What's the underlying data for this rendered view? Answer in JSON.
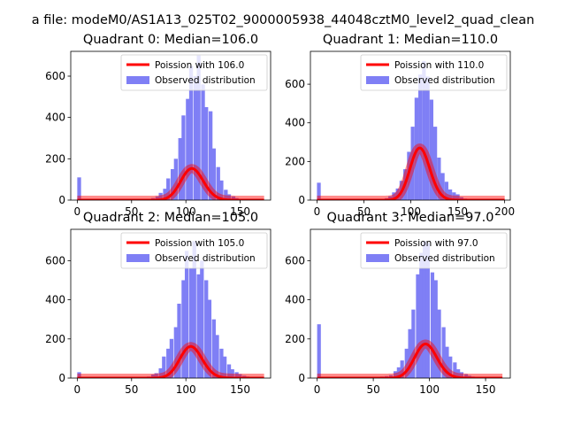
{
  "figure": {
    "suptitle": "a file: modeM0/AS1A13_025T02_9000005938_44048cztM0_level2_quad_clean"
  },
  "colors": {
    "hist": "#7f7ff5",
    "poisson": "#ff0000"
  },
  "chart_data": [
    {
      "type": "bar",
      "title": "Quadrant 0: Median=106.0",
      "median": 106,
      "xlim": [
        -6,
        178
      ],
      "ylim": [
        0,
        720
      ],
      "xticks": [
        0,
        50,
        100,
        150
      ],
      "yticks": [
        0,
        200,
        400,
        600
      ],
      "legend": {
        "placement": "top-right",
        "entries": [
          "Poission with 106.0",
          "Observed distribution"
        ]
      },
      "series": [
        {
          "name": "Poission with 106.0",
          "type": "line",
          "lambda": 106,
          "scale": 3950,
          "x_range": [
            0,
            172
          ]
        },
        {
          "name": "Observed distribution",
          "type": "bar",
          "bin_width": 3.5,
          "bins": [
            [
              0,
              110
            ],
            [
              60,
              3
            ],
            [
              65,
              6
            ],
            [
              68,
              10
            ],
            [
              72,
              18
            ],
            [
              75,
              35
            ],
            [
              79,
              55
            ],
            [
              82,
              105
            ],
            [
              86,
              150
            ],
            [
              89,
              200
            ],
            [
              93,
              300
            ],
            [
              96,
              410
            ],
            [
              100,
              490
            ],
            [
              103,
              650
            ],
            [
              107,
              600
            ],
            [
              110,
              700
            ],
            [
              114,
              560
            ],
            [
              117,
              450
            ],
            [
              121,
              430
            ],
            [
              124,
              250
            ],
            [
              128,
              160
            ],
            [
              131,
              95
            ],
            [
              135,
              50
            ],
            [
              138,
              28
            ],
            [
              142,
              18
            ],
            [
              145,
              10
            ],
            [
              149,
              6
            ],
            [
              152,
              4
            ]
          ]
        }
      ]
    },
    {
      "type": "bar",
      "title": "Quadrant 1: Median=110.0",
      "median": 110,
      "xlim": [
        -7,
        206
      ],
      "ylim": [
        0,
        770
      ],
      "xticks": [
        0,
        50,
        100,
        150,
        200
      ],
      "yticks": [
        0,
        200,
        400,
        600
      ],
      "legend": {
        "placement": "top-right",
        "entries": [
          "Poission with 110.0",
          "Observed distribution"
        ]
      },
      "series": [
        {
          "name": "Poission with 110.0",
          "type": "line",
          "lambda": 110,
          "scale": 7100,
          "x_range": [
            0,
            200
          ]
        },
        {
          "name": "Observed distribution",
          "type": "bar",
          "bin_width": 4,
          "bins": [
            [
              0,
              90
            ],
            [
              60,
              3
            ],
            [
              68,
              6
            ],
            [
              72,
              10
            ],
            [
              76,
              20
            ],
            [
              80,
              40
            ],
            [
              84,
              60
            ],
            [
              88,
              100
            ],
            [
              92,
              160
            ],
            [
              96,
              250
            ],
            [
              100,
              380
            ],
            [
              104,
              530
            ],
            [
              108,
              650
            ],
            [
              112,
              720
            ],
            [
              116,
              640
            ],
            [
              120,
              520
            ],
            [
              124,
              380
            ],
            [
              128,
              220
            ],
            [
              132,
              140
            ],
            [
              136,
              95
            ],
            [
              140,
              55
            ],
            [
              144,
              40
            ],
            [
              148,
              30
            ],
            [
              152,
              15
            ],
            [
              156,
              8
            ],
            [
              160,
              4
            ]
          ]
        }
      ]
    },
    {
      "type": "bar",
      "title": "Quadrant 2: Median=105.0",
      "median": 105,
      "xlim": [
        -6,
        178
      ],
      "ylim": [
        0,
        760
      ],
      "xticks": [
        0,
        50,
        100,
        150
      ],
      "yticks": [
        0,
        200,
        400,
        600
      ],
      "legend": {
        "placement": "top-right",
        "entries": [
          "Poission with 105.0",
          "Observed distribution"
        ]
      },
      "series": [
        {
          "name": "Poission with 105.0",
          "type": "line",
          "lambda": 105,
          "scale": 4150,
          "x_range": [
            0,
            172
          ]
        },
        {
          "name": "Observed distribution",
          "type": "bar",
          "bin_width": 3.5,
          "bins": [
            [
              0,
              30
            ],
            [
              57,
              4
            ],
            [
              64,
              8
            ],
            [
              68,
              18
            ],
            [
              71,
              25
            ],
            [
              75,
              50
            ],
            [
              78,
              110
            ],
            [
              82,
              150
            ],
            [
              85,
              200
            ],
            [
              89,
              260
            ],
            [
              92,
              380
            ],
            [
              96,
              500
            ],
            [
              99,
              650
            ],
            [
              103,
              560
            ],
            [
              106,
              700
            ],
            [
              110,
              530
            ],
            [
              113,
              600
            ],
            [
              117,
              500
            ],
            [
              120,
              400
            ],
            [
              124,
              300
            ],
            [
              127,
              220
            ],
            [
              131,
              150
            ],
            [
              134,
              110
            ],
            [
              138,
              70
            ],
            [
              141,
              45
            ],
            [
              145,
              30
            ],
            [
              148,
              20
            ],
            [
              152,
              12
            ],
            [
              155,
              8
            ]
          ]
        }
      ]
    },
    {
      "type": "bar",
      "title": "Quadrant 3: Median=97.0",
      "median": 97,
      "xlim": [
        -6,
        172
      ],
      "ylim": [
        0,
        760
      ],
      "xticks": [
        0,
        50,
        100,
        150
      ],
      "yticks": [
        0,
        200,
        400,
        600
      ],
      "legend": {
        "placement": "top-right",
        "entries": [
          "Poission with 97.0",
          "Observed distribution"
        ]
      },
      "series": [
        {
          "name": "Poission with 97.0",
          "type": "line",
          "lambda": 97,
          "scale": 4300,
          "x_range": [
            0,
            165
          ]
        },
        {
          "name": "Observed distribution",
          "type": "bar",
          "bin_width": 3.3,
          "bins": [
            [
              0,
              275
            ],
            [
              28,
              5
            ],
            [
              40,
              4
            ],
            [
              48,
              6
            ],
            [
              56,
              8
            ],
            [
              60,
              10
            ],
            [
              64,
              15
            ],
            [
              68,
              35
            ],
            [
              71,
              55
            ],
            [
              74,
              90
            ],
            [
              78,
              150
            ],
            [
              81,
              250
            ],
            [
              84,
              350
            ],
            [
              88,
              530
            ],
            [
              91,
              640
            ],
            [
              94,
              700
            ],
            [
              97,
              690
            ],
            [
              101,
              540
            ],
            [
              104,
              500
            ],
            [
              107,
              350
            ],
            [
              111,
              260
            ],
            [
              114,
              160
            ],
            [
              117,
              110
            ],
            [
              121,
              80
            ],
            [
              124,
              45
            ],
            [
              127,
              30
            ],
            [
              131,
              20
            ],
            [
              134,
              12
            ],
            [
              137,
              8
            ],
            [
              141,
              5
            ]
          ]
        }
      ]
    }
  ]
}
